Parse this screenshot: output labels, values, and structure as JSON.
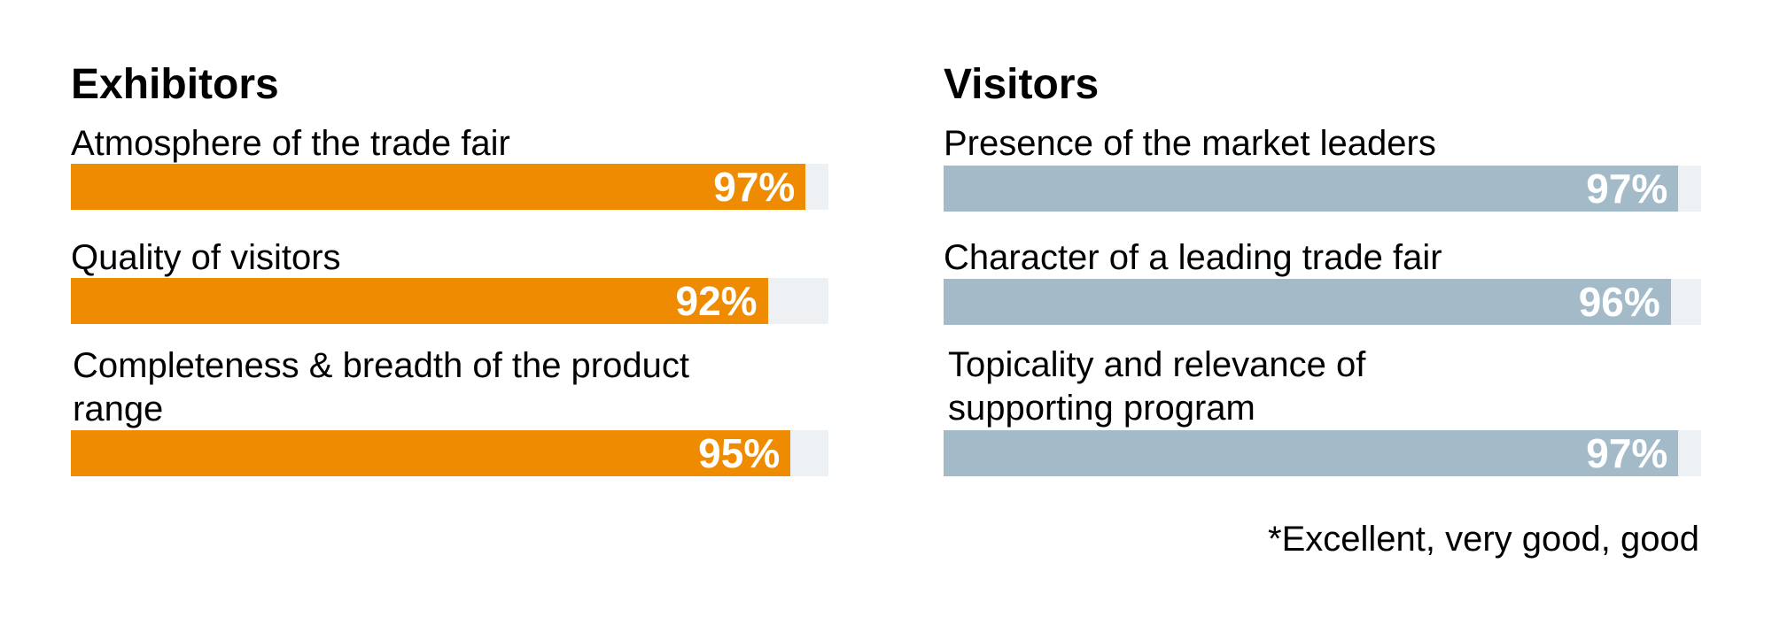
{
  "chart_data": [
    {
      "type": "bar",
      "orientation": "horizontal",
      "title": "Exhibitors",
      "color": "#ef8b00",
      "track_color": "#eef1f4",
      "xlim": [
        0,
        100
      ],
      "categories": [
        "Atmosphere of the trade fair",
        "Quality of visitors",
        "Completeness & breadth of the product range"
      ],
      "values": [
        97,
        92,
        95
      ],
      "value_labels": [
        "97%",
        "92%",
        "95%"
      ]
    },
    {
      "type": "bar",
      "orientation": "horizontal",
      "title": "Visitors",
      "color": "#a3bbc8",
      "track_color": "#eef1f4",
      "xlim": [
        0,
        100
      ],
      "categories": [
        "Presence of the market leaders",
        "Character of a leading trade fair",
        "Topicality and relevance of supporting program"
      ],
      "values": [
        97,
        96,
        97
      ],
      "value_labels": [
        "97%",
        "96%",
        "97%"
      ]
    }
  ],
  "footnote": "*Excellent, very good, good"
}
